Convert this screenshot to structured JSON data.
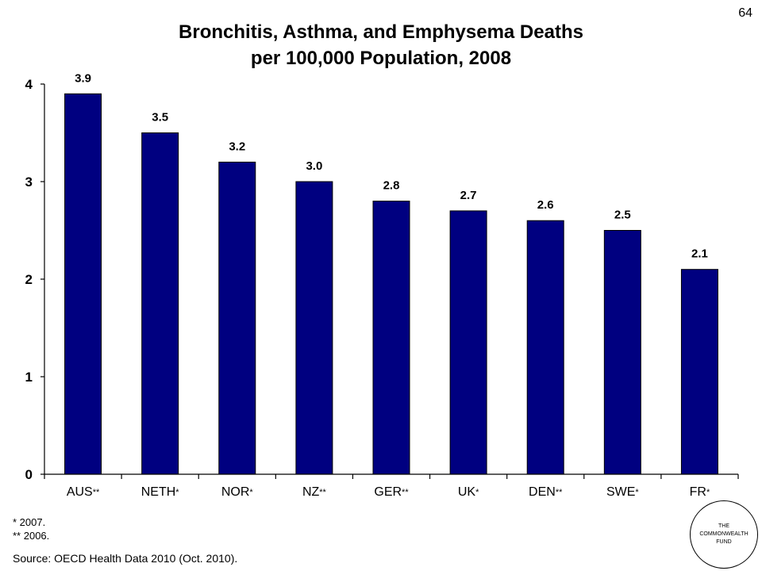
{
  "slide_number": "64",
  "chart_data": {
    "type": "bar",
    "title": [
      "Bronchitis, Asthma, and Emphysema Deaths",
      "per 100,000 Population, 2008"
    ],
    "categories": [
      "AUS",
      "NETH",
      "NOR",
      "NZ",
      "GER",
      "UK",
      "DEN",
      "SWE",
      "FR"
    ],
    "category_marks": [
      "**",
      "*",
      "*",
      "**",
      "**",
      "*",
      "**",
      "*",
      "*"
    ],
    "values": [
      3.9,
      3.5,
      3.2,
      3.0,
      2.8,
      2.7,
      2.6,
      2.5,
      2.1
    ],
    "value_labels": [
      "3.9",
      "3.5",
      "3.2",
      "3.0",
      "2.8",
      "2.7",
      "2.6",
      "2.5",
      "2.1"
    ],
    "ylim": [
      0,
      4
    ],
    "yticks": [
      0,
      1,
      2,
      3,
      4
    ],
    "bar_color": "#000080",
    "grid": false,
    "legend": "none"
  },
  "footnotes": [
    "* 2007.",
    "** 2006."
  ],
  "source": "Source: OECD Health Data 2010 (Oct. 2010).",
  "logo": {
    "lines": [
      "THE",
      "COMMONWEALTH",
      "FUND"
    ]
  }
}
